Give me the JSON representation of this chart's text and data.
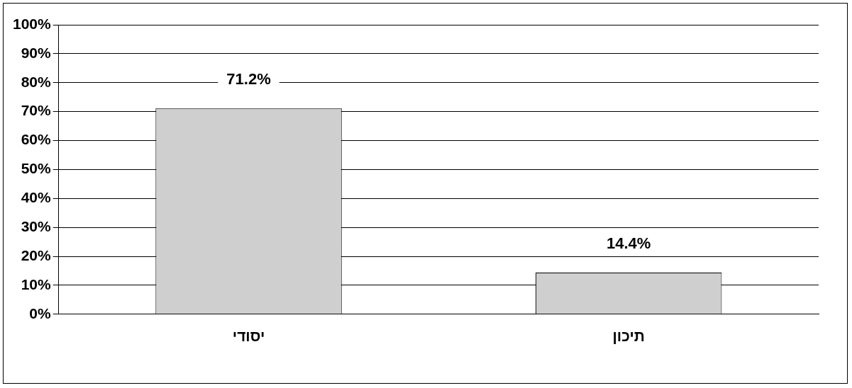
{
  "chart_data": {
    "type": "bar",
    "categories": [
      "יסודי",
      "תיכון"
    ],
    "values": [
      71.2,
      14.4
    ],
    "value_labels": [
      "71.2%",
      "14.4%"
    ],
    "color": "#cfcfcf",
    "ylim": [
      0,
      100
    ],
    "yticks": [
      {
        "value": 0,
        "label": "0%"
      },
      {
        "value": 10,
        "label": "10%"
      },
      {
        "value": 20,
        "label": "20%"
      },
      {
        "value": 30,
        "label": "30%"
      },
      {
        "value": 40,
        "label": "40%"
      },
      {
        "value": 50,
        "label": "50%"
      },
      {
        "value": 60,
        "label": "60%"
      },
      {
        "value": 70,
        "label": "70%"
      },
      {
        "value": 80,
        "label": "80%"
      },
      {
        "value": 90,
        "label": "90%"
      },
      {
        "value": 100,
        "label": "100%"
      }
    ],
    "grid": "y",
    "legend": false
  }
}
